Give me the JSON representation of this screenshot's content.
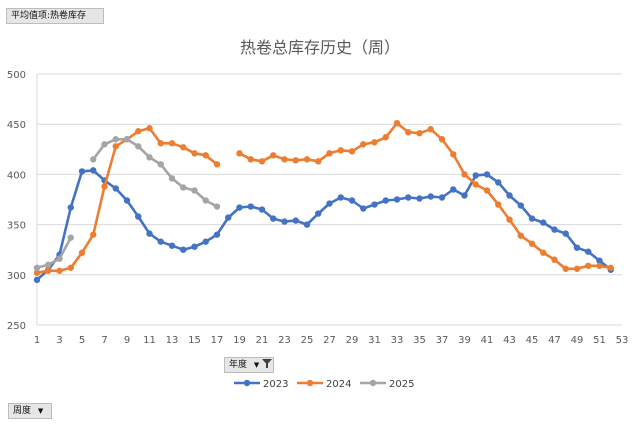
{
  "pivot": {
    "value_field_label": "平均值项:热卷库存",
    "row_field_label": "周度",
    "legend_field_label": "年度"
  },
  "chart_data": {
    "type": "line",
    "title": "热卷总库存历史（周）",
    "xlabel": "",
    "ylabel": "",
    "ylim": [
      250,
      500
    ],
    "y_ticks": [
      250,
      300,
      350,
      400,
      450,
      500
    ],
    "xlim": [
      1,
      53
    ],
    "x_tick_labels": [
      1,
      3,
      5,
      7,
      9,
      11,
      13,
      15,
      17,
      19,
      21,
      23,
      25,
      27,
      29,
      31,
      33,
      35,
      37,
      39,
      41,
      43,
      45,
      47,
      49,
      51,
      53
    ],
    "grid": "horizontal",
    "legend_position": "bottom",
    "series": [
      {
        "name": "2023",
        "color": "#4472C4",
        "x": [
          1,
          2,
          3,
          4,
          5,
          6,
          7,
          8,
          9,
          10,
          11,
          12,
          13,
          14,
          15,
          16,
          17,
          18,
          19,
          20,
          21,
          22,
          23,
          24,
          25,
          26,
          27,
          28,
          29,
          30,
          31,
          32,
          33,
          34,
          35,
          36,
          37,
          38,
          39,
          40,
          41,
          42,
          43,
          44,
          45,
          46,
          47,
          48,
          49,
          50,
          51,
          52
        ],
        "values": [
          295,
          305,
          320,
          367,
          403,
          404,
          394,
          386,
          374,
          358,
          341,
          333,
          329,
          325,
          328,
          333,
          340,
          357,
          367,
          368,
          365,
          356,
          353,
          354,
          350,
          361,
          371,
          377,
          374,
          366,
          370,
          374,
          375,
          377,
          376,
          378,
          377,
          385,
          379,
          399,
          400,
          392,
          379,
          369,
          356,
          352,
          345,
          341,
          327,
          323,
          314,
          305
        ]
      },
      {
        "name": "2024",
        "color": "#ED7D31",
        "segments": [
          {
            "x": [
              1,
              2,
              3,
              4,
              5,
              6,
              7,
              8,
              9,
              10,
              11,
              12,
              13,
              14,
              15,
              16,
              17
            ],
            "values": [
              302,
              304,
              304,
              307,
              322,
              340,
              388,
              428,
              435,
              443,
              446,
              431,
              431,
              427,
              421,
              419,
              410
            ]
          },
          {
            "x": [
              19,
              20,
              21,
              22,
              23,
              24,
              25,
              26,
              27,
              28,
              29,
              30,
              31,
              32,
              33,
              34,
              35,
              36,
              37,
              38,
              39,
              40,
              41,
              42,
              43,
              44,
              45,
              46,
              47,
              48,
              49,
              50,
              51,
              52
            ],
            "values": [
              421,
              415,
              413,
              419,
              415,
              414,
              415,
              413,
              421,
              424,
              423,
              430,
              432,
              437,
              451,
              442,
              441,
              445,
              435,
              420,
              400,
              390,
              384,
              370,
              355,
              339,
              331,
              322,
              315,
              306,
              306,
              309,
              309,
              307
            ]
          }
        ]
      },
      {
        "name": "2025",
        "color": "#A5A5A5",
        "segments": [
          {
            "x": [
              1,
              2,
              3,
              4
            ],
            "values": [
              307,
              310,
              316,
              337
            ]
          },
          {
            "x": [
              6,
              7,
              8,
              9,
              10,
              11,
              12,
              13,
              14,
              15,
              16,
              17
            ],
            "values": [
              415,
              430,
              435,
              435,
              428,
              417,
              410,
              396,
              387,
              384,
              374,
              368
            ]
          }
        ]
      }
    ]
  }
}
